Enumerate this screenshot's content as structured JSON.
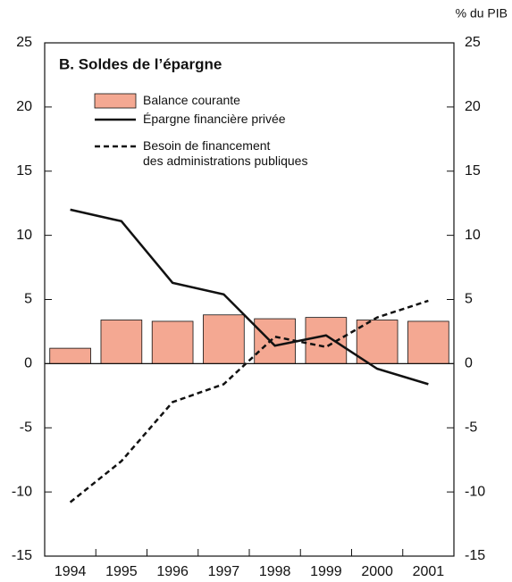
{
  "chart_data": {
    "type": "bar",
    "title": "B.  Soldes de l’épargne",
    "y2_label": "% du PIB",
    "categories": [
      "1994",
      "1995",
      "1996",
      "1997",
      "1998",
      "1999",
      "2000",
      "2001"
    ],
    "series": [
      {
        "name": "Balance courante",
        "type": "bar",
        "color": "#f4a892",
        "values": [
          1.2,
          3.4,
          3.3,
          3.8,
          3.5,
          3.6,
          3.4,
          3.3
        ]
      },
      {
        "name": "Épargne financière privée",
        "type": "line",
        "color": "#111111",
        "dashed": false,
        "values": [
          12.0,
          11.1,
          6.3,
          5.4,
          1.4,
          2.2,
          -0.4,
          -1.6
        ]
      },
      {
        "name": "Besoin de financement\ndes administrations publiques",
        "type": "line",
        "color": "#111111",
        "dashed": true,
        "values": [
          -10.8,
          -7.6,
          -3.0,
          -1.6,
          2.1,
          1.3,
          3.6,
          4.9
        ]
      }
    ],
    "ylim": [
      -15,
      25
    ],
    "yticks": [
      -15,
      -10,
      -5,
      0,
      5,
      10,
      15,
      20,
      25
    ],
    "y2lim": [
      -15,
      25
    ],
    "y2ticks": [
      -15,
      -10,
      -5,
      0,
      5,
      10,
      15,
      20,
      25
    ]
  }
}
